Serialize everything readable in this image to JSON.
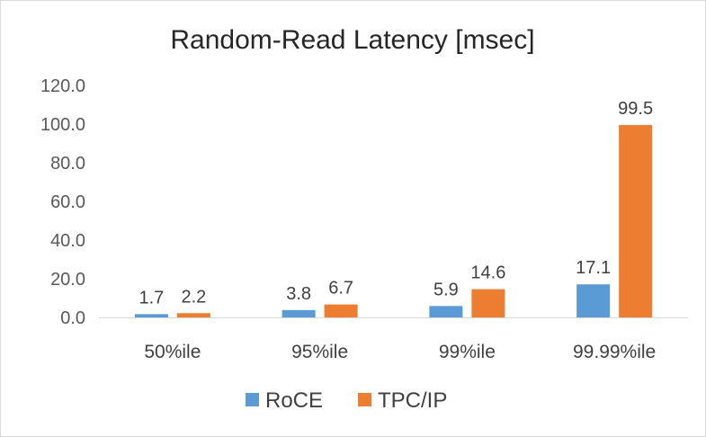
{
  "chart_data": {
    "type": "bar",
    "title": "Random-Read Latency [msec]",
    "xlabel": "",
    "ylabel": "",
    "categories": [
      "50%ile",
      "95%ile",
      "99%ile",
      "99.99%ile"
    ],
    "series": [
      {
        "name": "RoCE",
        "values": [
          1.7,
          3.8,
          5.9,
          17.1
        ],
        "color": "#5b9bd5"
      },
      {
        "name": "TPC/IP",
        "values": [
          2.2,
          6.7,
          14.6,
          99.5
        ],
        "color": "#ed7d31"
      }
    ],
    "ylim": [
      0,
      120
    ],
    "yticks": [
      "0.0",
      "20.0",
      "40.0",
      "60.0",
      "80.0",
      "100.0",
      "120.0"
    ],
    "grid": false,
    "legend": "bottom",
    "data_labels": true
  }
}
